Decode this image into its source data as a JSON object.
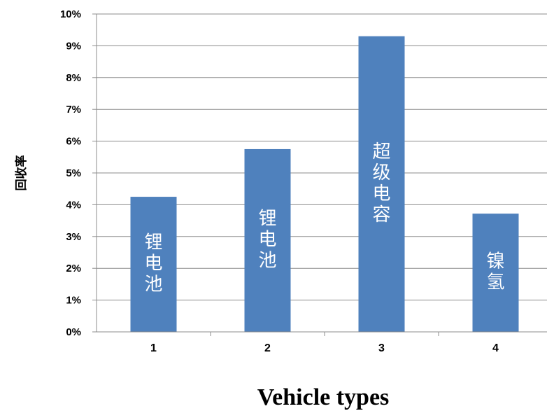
{
  "chart_data": {
    "type": "bar",
    "categories": [
      "1",
      "2",
      "3",
      "4"
    ],
    "values": [
      4.25,
      5.75,
      9.3,
      3.72
    ],
    "bar_labels": [
      "锂电池",
      "锂电池",
      "超级电容",
      "镍氢"
    ],
    "ylabel": "回收率",
    "xlabel": "Vehicle types",
    "ylim": [
      0,
      10
    ],
    "yticks": [
      "0%",
      "1%",
      "2%",
      "3%",
      "4%",
      "5%",
      "6%",
      "7%",
      "8%",
      "9%",
      "10%"
    ],
    "grid": true,
    "bar_color": "#4f81bd"
  }
}
